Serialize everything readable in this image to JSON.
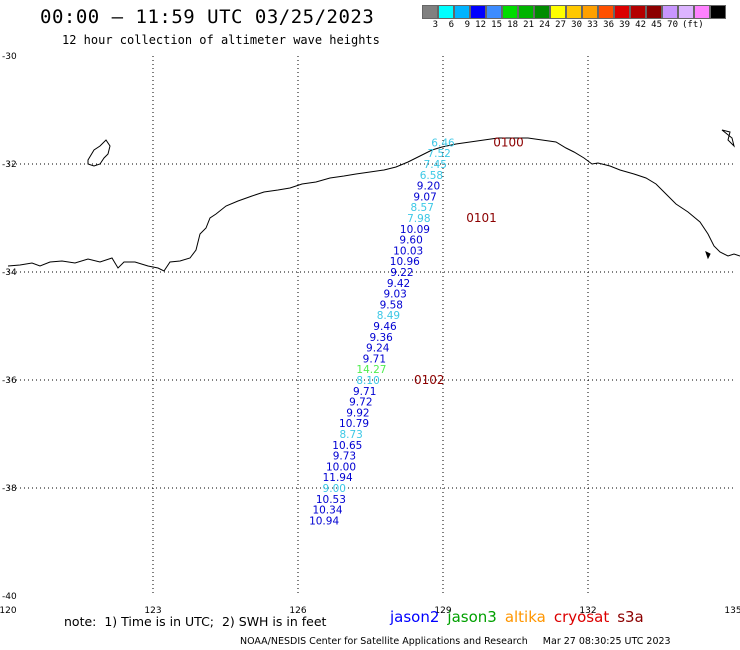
{
  "header": {
    "title": "00:00 – 11:59 UTC 03/25/2023",
    "subtitle": "12 hour collection of altimeter wave heights"
  },
  "legend": {
    "unit": "(ft)",
    "colors": [
      "#808080",
      "#00ffff",
      "#00b4ff",
      "#0000ff",
      "#3c8cff",
      "#00dc00",
      "#00b400",
      "#008c00",
      "#ffff00",
      "#ffc800",
      "#ffa000",
      "#ff5000",
      "#dc0000",
      "#b40000",
      "#8c0000",
      "#c896ff",
      "#dcb4ff",
      "#ff82ff",
      "#000000"
    ],
    "labels": [
      "3",
      "6",
      "9",
      "12",
      "15",
      "18",
      "21",
      "24",
      "27",
      "30",
      "33",
      "36",
      "39",
      "42",
      "45",
      "70"
    ]
  },
  "map": {
    "lon_ticks": [
      "120",
      "123",
      "126",
      "129",
      "132",
      "135"
    ],
    "lat_ticks": [
      "-30",
      "-32",
      "-34",
      "-36",
      "-38",
      "-40"
    ],
    "track": [
      {
        "lat": -31.6,
        "lon": 129.0,
        "swh": "6.46",
        "color": "#3cc8e6"
      },
      {
        "lat": -31.8,
        "lon": 128.92,
        "swh": "7.52",
        "color": "#3cc8e6"
      },
      {
        "lat": -32.0,
        "lon": 128.84,
        "swh": "7.45",
        "color": "#3cc8e6"
      },
      {
        "lat": -32.2,
        "lon": 128.76,
        "swh": "6.58",
        "color": "#3cc8e6"
      },
      {
        "lat": -32.4,
        "lon": 128.7,
        "swh": "9.20",
        "color": "#0000d2"
      },
      {
        "lat": -32.6,
        "lon": 128.63,
        "swh": "9.07",
        "color": "#0000d2"
      },
      {
        "lat": -32.8,
        "lon": 128.57,
        "swh": "8.57",
        "color": "#3cc8e6"
      },
      {
        "lat": -33.0,
        "lon": 128.5,
        "swh": "7.98",
        "color": "#3cc8e6"
      },
      {
        "lat": -33.2,
        "lon": 128.42,
        "swh": "10.09",
        "color": "#0000d2"
      },
      {
        "lat": -33.4,
        "lon": 128.34,
        "swh": "9.60",
        "color": "#0000d2"
      },
      {
        "lat": -33.6,
        "lon": 128.28,
        "swh": "10.03",
        "color": "#0000d2"
      },
      {
        "lat": -33.8,
        "lon": 128.21,
        "swh": "10.96",
        "color": "#0000d2"
      },
      {
        "lat": -34.0,
        "lon": 128.15,
        "swh": "9.22",
        "color": "#0000d2"
      },
      {
        "lat": -34.2,
        "lon": 128.08,
        "swh": "9.42",
        "color": "#0000d2"
      },
      {
        "lat": -34.4,
        "lon": 128.01,
        "swh": "9.03",
        "color": "#0000d2"
      },
      {
        "lat": -34.6,
        "lon": 127.93,
        "swh": "9.58",
        "color": "#0000d2"
      },
      {
        "lat": -34.8,
        "lon": 127.87,
        "swh": "8.49",
        "color": "#3cc8e6"
      },
      {
        "lat": -35.0,
        "lon": 127.8,
        "swh": "9.46",
        "color": "#0000d2"
      },
      {
        "lat": -35.2,
        "lon": 127.72,
        "swh": "9.36",
        "color": "#0000d2"
      },
      {
        "lat": -35.4,
        "lon": 127.65,
        "swh": "9.24",
        "color": "#0000d2"
      },
      {
        "lat": -35.6,
        "lon": 127.58,
        "swh": "9.71",
        "color": "#0000d2"
      },
      {
        "lat": -35.8,
        "lon": 127.52,
        "swh": "14.27",
        "color": "#50ee50"
      },
      {
        "lat": -36.0,
        "lon": 127.45,
        "swh": "8.10",
        "color": "#3cc8e6"
      },
      {
        "lat": -36.2,
        "lon": 127.38,
        "swh": "9.71",
        "color": "#0000d2"
      },
      {
        "lat": -36.4,
        "lon": 127.3,
        "swh": "9.72",
        "color": "#0000d2"
      },
      {
        "lat": -36.6,
        "lon": 127.24,
        "swh": "9.92",
        "color": "#0000d2"
      },
      {
        "lat": -36.8,
        "lon": 127.16,
        "swh": "10.79",
        "color": "#0000d2"
      },
      {
        "lat": -37.0,
        "lon": 127.1,
        "swh": "8.73",
        "color": "#3cc8e6"
      },
      {
        "lat": -37.2,
        "lon": 127.02,
        "swh": "10.65",
        "color": "#0000d2"
      },
      {
        "lat": -37.4,
        "lon": 126.96,
        "swh": "9.73",
        "color": "#0000d2"
      },
      {
        "lat": -37.6,
        "lon": 126.89,
        "swh": "10.00",
        "color": "#0000d2"
      },
      {
        "lat": -37.8,
        "lon": 126.82,
        "swh": "11.94",
        "color": "#0000d2"
      },
      {
        "lat": -38.0,
        "lon": 126.75,
        "swh": "9.00",
        "color": "#3cc8e6"
      },
      {
        "lat": -38.2,
        "lon": 126.68,
        "swh": "10.53",
        "color": "#0000d2"
      },
      {
        "lat": -38.4,
        "lon": 126.61,
        "swh": "10.34",
        "color": "#0000d2"
      },
      {
        "lat": -38.6,
        "lon": 126.54,
        "swh": "10.94",
        "color": "#0000d2"
      }
    ],
    "time_labels": [
      {
        "lat": -31.6,
        "lon": 130.04,
        "text": "0100"
      },
      {
        "lat": -33.0,
        "lon": 129.48,
        "text": "0101"
      },
      {
        "lat": -36.0,
        "lon": 128.4,
        "text": "0102"
      }
    ],
    "time_color": "#8c0000",
    "coast_color": "#000000"
  },
  "footer": {
    "note": "note:  1) Time is in UTC;  2) SWH is in feet",
    "satellites": [
      {
        "name": "jason2",
        "color": "#0000ff"
      },
      {
        "name": "jason3",
        "color": "#00a000"
      },
      {
        "name": "altika",
        "color": "#ff9600"
      },
      {
        "name": "cryosat",
        "color": "#dc0000"
      },
      {
        "name": "s3a",
        "color": "#8c0000"
      }
    ],
    "credit": "NOAA/NESDIS Center for Satellite Applications and Research     Mar 27 08:30:25 UTC 2023"
  }
}
